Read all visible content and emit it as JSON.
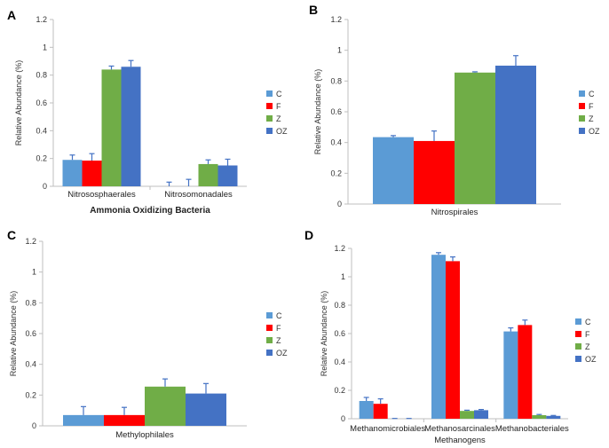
{
  "legend": {
    "labels": [
      "C",
      "F",
      "Z",
      "OZ"
    ],
    "colors": [
      "#5B9BD5",
      "#FF0000",
      "#70AD47",
      "#4472C4"
    ],
    "error_color": "#4472C4"
  },
  "chart_data": [
    {
      "panel": "A",
      "type": "bar",
      "ylabel": "Relative Abundance (%)",
      "xlabel": "Ammonia Oxidizing Bacteria",
      "ylim": [
        0,
        1.2
      ],
      "yticks": [
        "0",
        "0.2",
        "0.4",
        "0.6",
        "0.8",
        "1",
        "1.2"
      ],
      "categories": [
        "Nitrososphaerales",
        "Nitrosomonadales"
      ],
      "series": [
        {
          "name": "C",
          "values": [
            0.19,
            0.0
          ],
          "errors": [
            0.035,
            0.03
          ]
        },
        {
          "name": "F",
          "values": [
            0.185,
            0.0
          ],
          "errors": [
            0.05,
            0.05
          ]
        },
        {
          "name": "Z",
          "values": [
            0.84,
            0.16
          ],
          "errors": [
            0.025,
            0.03
          ]
        },
        {
          "name": "OZ",
          "values": [
            0.86,
            0.15
          ],
          "errors": [
            0.045,
            0.045
          ]
        }
      ]
    },
    {
      "panel": "B",
      "type": "bar",
      "ylabel": "Relative Abundance (%)",
      "xlabel": "",
      "ylim": [
        0,
        1.2
      ],
      "yticks": [
        "0",
        "0.2",
        "0.4",
        "0.6",
        "0.8",
        "1",
        "1.2"
      ],
      "categories": [
        "Nitrospirales"
      ],
      "series": [
        {
          "name": "C",
          "values": [
            0.435
          ],
          "errors": [
            0.01
          ]
        },
        {
          "name": "F",
          "values": [
            0.41
          ],
          "errors": [
            0.065
          ]
        },
        {
          "name": "Z",
          "values": [
            0.855
          ],
          "errors": [
            0.005
          ]
        },
        {
          "name": "OZ",
          "values": [
            0.9
          ],
          "errors": [
            0.065
          ]
        }
      ]
    },
    {
      "panel": "C",
      "type": "bar",
      "ylabel": "Relative Abundance (%)",
      "xlabel": "",
      "ylim": [
        0,
        1.2
      ],
      "yticks": [
        "0",
        "0.2",
        "0.4",
        "0.6",
        "0.8",
        "1",
        "1.2"
      ],
      "categories": [
        "Methylophilales"
      ],
      "series": [
        {
          "name": "C",
          "values": [
            0.07
          ],
          "errors": [
            0.055
          ]
        },
        {
          "name": "F",
          "values": [
            0.07
          ],
          "errors": [
            0.05
          ]
        },
        {
          "name": "Z",
          "values": [
            0.255
          ],
          "errors": [
            0.05
          ]
        },
        {
          "name": "OZ",
          "values": [
            0.21
          ],
          "errors": [
            0.065
          ]
        }
      ]
    },
    {
      "panel": "D",
      "type": "bar",
      "ylabel": "Relative Abundance (%)",
      "xlabel": "Methanogens",
      "ylim": [
        0,
        1.2
      ],
      "yticks": [
        "0",
        "0.2",
        "0.4",
        "0.6",
        "0.8",
        "1",
        "1.2"
      ],
      "categories": [
        "Methanomicrobiales",
        "Methanosarcinales",
        "Methanobacteriales"
      ],
      "series": [
        {
          "name": "C",
          "values": [
            0.125,
            1.155,
            0.615
          ],
          "errors": [
            0.025,
            0.015,
            0.025
          ]
        },
        {
          "name": "F",
          "values": [
            0.105,
            1.11,
            0.66
          ],
          "errors": [
            0.035,
            0.03,
            0.035
          ]
        },
        {
          "name": "Z",
          "values": [
            0.0,
            0.055,
            0.025
          ],
          "errors": [
            0.002,
            0.005,
            0.005
          ]
        },
        {
          "name": "OZ",
          "values": [
            0.0,
            0.06,
            0.02
          ],
          "errors": [
            0.002,
            0.005,
            0.003
          ]
        }
      ]
    }
  ]
}
